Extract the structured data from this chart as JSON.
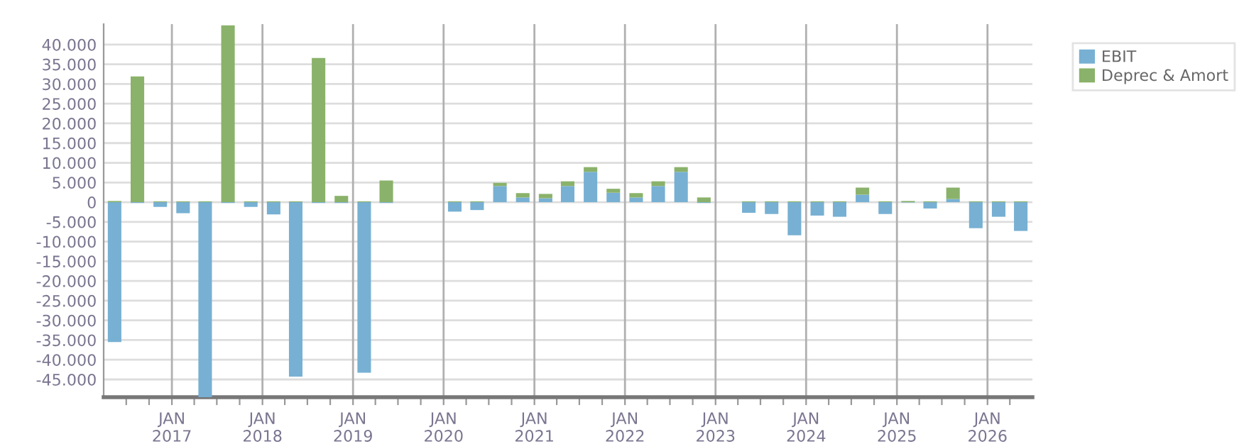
{
  "chart_data": {
    "type": "bar",
    "stacked": true,
    "x": [
      "2016-05-15",
      "2016-08-15",
      "2016-11-15",
      "2017-02-15",
      "2017-05-15",
      "2017-08-15",
      "2017-11-15",
      "2018-02-15",
      "2018-05-15",
      "2018-08-15",
      "2018-11-15",
      "2019-02-15",
      "2019-05-15",
      "2020-02-15",
      "2020-05-15",
      "2020-08-15",
      "2020-11-15",
      "2021-02-15",
      "2021-05-15",
      "2021-08-15",
      "2021-11-15",
      "2022-02-15",
      "2022-05-15",
      "2022-08-15",
      "2022-11-15",
      "2023-05-15",
      "2023-08-15",
      "2023-11-15",
      "2024-02-15",
      "2024-05-15",
      "2024-08-15",
      "2024-11-15",
      "2025-02-15",
      "2025-05-15",
      "2025-08-15",
      "2025-11-15",
      "2026-02-15",
      "2026-05-15"
    ],
    "series": [
      {
        "name": "EBIT",
        "color": "#77b0d3",
        "values": [
          -35500,
          -200,
          -1200,
          -2800,
          -49500,
          -200,
          -1200,
          -3100,
          -44300,
          -200,
          -200,
          -43300,
          -200,
          -2400,
          -2000,
          4100,
          1200,
          1000,
          4100,
          7700,
          2400,
          1200,
          4100,
          7700,
          -200,
          -2700,
          -3000,
          -8400,
          -3400,
          -3700,
          1900,
          -3000,
          -100,
          -1600,
          800,
          -6600,
          -3700,
          -7300
        ]
      },
      {
        "name": "Deprec & Amort",
        "color": "#8ab26a",
        "values": [
          300,
          31900,
          200,
          200,
          200,
          44900,
          200,
          200,
          200,
          36600,
          1600,
          200,
          5500,
          200,
          200,
          800,
          1100,
          1100,
          1200,
          1200,
          1000,
          1100,
          1200,
          1200,
          1200,
          200,
          200,
          200,
          200,
          200,
          1800,
          200,
          300,
          200,
          2900,
          200,
          200,
          200
        ]
      }
    ],
    "xlim": [
      "2016-04-01",
      "2026-07-01"
    ],
    "xticks": [
      {
        "value": "2016-07-01",
        "label": null
      },
      {
        "value": "2016-10-01",
        "label": null
      },
      {
        "value": "2017-01-01",
        "label": "JAN\n2017"
      },
      {
        "value": "2017-04-01",
        "label": null
      },
      {
        "value": "2017-07-01",
        "label": null
      },
      {
        "value": "2017-10-01",
        "label": null
      },
      {
        "value": "2018-01-01",
        "label": "JAN\n2018"
      },
      {
        "value": "2018-04-01",
        "label": null
      },
      {
        "value": "2018-07-01",
        "label": null
      },
      {
        "value": "2018-10-01",
        "label": null
      },
      {
        "value": "2019-01-01",
        "label": "JAN\n2019"
      },
      {
        "value": "2019-04-01",
        "label": null
      },
      {
        "value": "2019-07-01",
        "label": null
      },
      {
        "value": "2019-10-01",
        "label": null
      },
      {
        "value": "2020-01-01",
        "label": "JAN\n2020"
      },
      {
        "value": "2020-04-01",
        "label": null
      },
      {
        "value": "2020-07-01",
        "label": null
      },
      {
        "value": "2020-10-01",
        "label": null
      },
      {
        "value": "2021-01-01",
        "label": "JAN\n2021"
      },
      {
        "value": "2021-04-01",
        "label": null
      },
      {
        "value": "2021-07-01",
        "label": null
      },
      {
        "value": "2021-10-01",
        "label": null
      },
      {
        "value": "2022-01-01",
        "label": "JAN\n2022"
      },
      {
        "value": "2022-04-01",
        "label": null
      },
      {
        "value": "2022-07-01",
        "label": null
      },
      {
        "value": "2022-10-01",
        "label": null
      },
      {
        "value": "2023-01-01",
        "label": "JAN\n2023"
      },
      {
        "value": "2023-04-01",
        "label": null
      },
      {
        "value": "2023-07-01",
        "label": null
      },
      {
        "value": "2023-10-01",
        "label": null
      },
      {
        "value": "2024-01-01",
        "label": "JAN\n2024"
      },
      {
        "value": "2024-04-01",
        "label": null
      },
      {
        "value": "2024-07-01",
        "label": null
      },
      {
        "value": "2024-10-01",
        "label": null
      },
      {
        "value": "2025-01-01",
        "label": "JAN\n2025"
      },
      {
        "value": "2025-04-01",
        "label": null
      },
      {
        "value": "2025-07-01",
        "label": null
      },
      {
        "value": "2025-10-01",
        "label": null
      },
      {
        "value": "2026-01-01",
        "label": "JAN\n2026"
      },
      {
        "value": "2026-04-01",
        "label": null
      }
    ],
    "ylim": [
      -49500,
      45200
    ],
    "yticks": [
      {
        "value": -45000,
        "label": "-45.000"
      },
      {
        "value": -40000,
        "label": "-40.000"
      },
      {
        "value": -35000,
        "label": "-35.000"
      },
      {
        "value": -30000,
        "label": "-30.000"
      },
      {
        "value": -25000,
        "label": "-25.000"
      },
      {
        "value": -20000,
        "label": "-20.000"
      },
      {
        "value": -15000,
        "label": "-15.000"
      },
      {
        "value": -10000,
        "label": "-10.000"
      },
      {
        "value": -5000,
        "label": "-5.000"
      },
      0,
      {
        "value": 5000,
        "label": "5.000"
      },
      {
        "value": 10000,
        "label": "10.000"
      },
      {
        "value": 15000,
        "label": "15.000"
      },
      {
        "value": 20000,
        "label": "20.000"
      },
      {
        "value": 25000,
        "label": "25.000"
      },
      {
        "value": 30000,
        "label": "30.000"
      },
      {
        "value": 35000,
        "label": "35.000"
      },
      {
        "value": 40000,
        "label": "40.000"
      }
    ],
    "grid": true,
    "legend": "top right"
  }
}
